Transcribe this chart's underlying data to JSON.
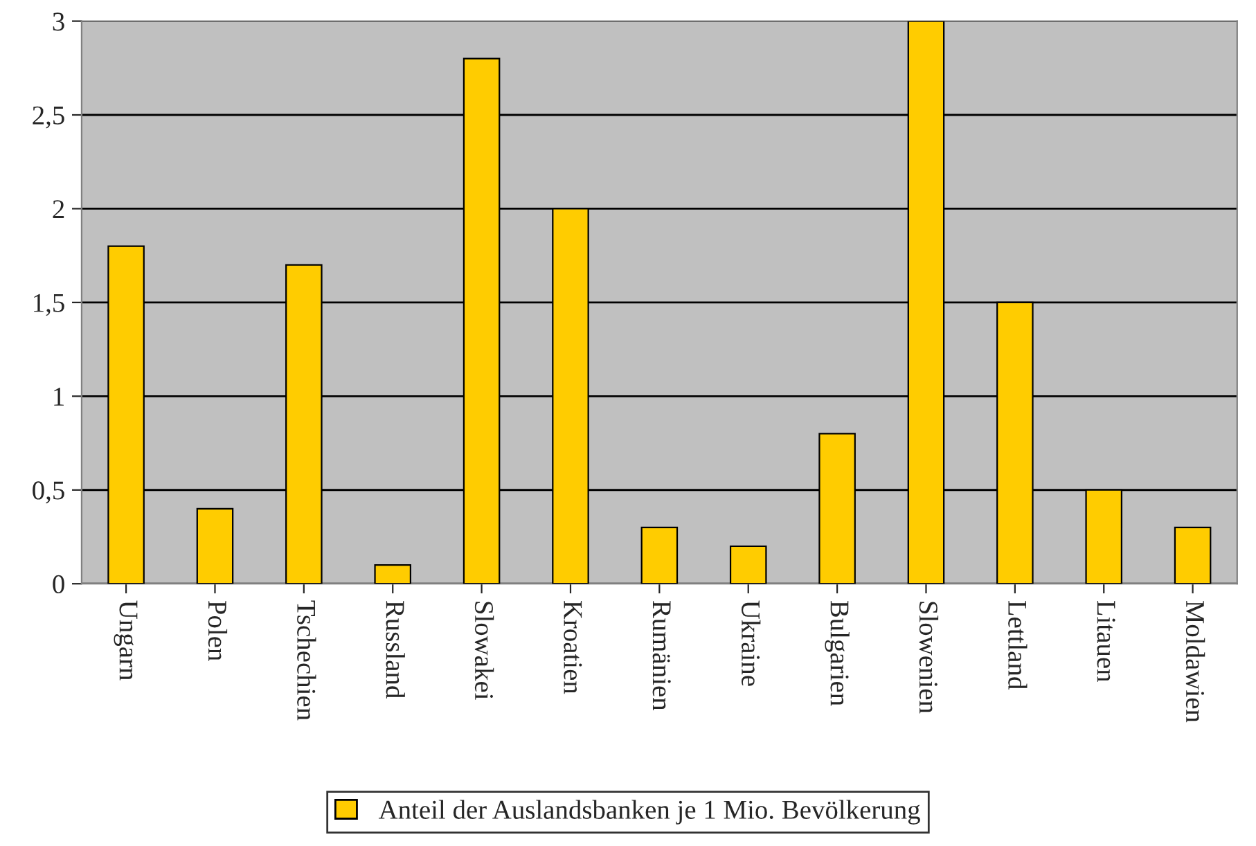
{
  "chart_data": {
    "type": "bar",
    "categories": [
      "Ungarn",
      "Polen",
      "Tschechien",
      "Russland",
      "Slowakei",
      "Kroatien",
      "Rumänien",
      "Ukraine",
      "Bulgarien",
      "Slowenien",
      "Lettland",
      "Litauen",
      "Moldawien"
    ],
    "series": [
      {
        "name": "Anteil der Auslandsbanken je 1 Mio. Bevölkerung",
        "color": "#ffcc00",
        "values": [
          1.8,
          0.4,
          1.7,
          0.1,
          2.8,
          2.0,
          0.3,
          0.2,
          0.8,
          3.0,
          1.5,
          0.5,
          0.3
        ]
      }
    ],
    "ylim": [
      0,
      3
    ],
    "yticks": [
      0,
      {
        "value": 0.5,
        "label": "0,5"
      },
      1,
      {
        "value": 1.5,
        "label": "1,5"
      },
      2,
      {
        "value": 2.5,
        "label": "2,5"
      },
      3
    ],
    "grid": "y",
    "legend": "bottom"
  }
}
